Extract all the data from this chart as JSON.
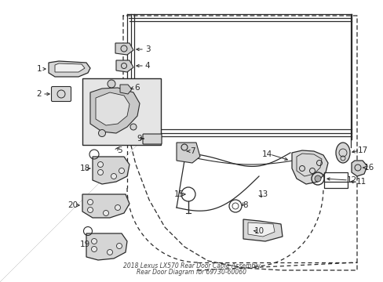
{
  "bg_color": "#ffffff",
  "lc": "#2a2a2a",
  "title": "2018 Lexus LX570 Rear Door Cable Assembly\nRear Door Diagram for 69730-60060",
  "figsize": [
    4.89,
    3.6
  ],
  "dpi": 100
}
